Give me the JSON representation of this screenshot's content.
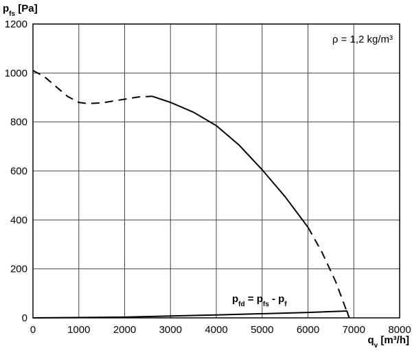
{
  "chart_data": {
    "type": "line",
    "ylabel": [
      {
        "text": "p"
      },
      {
        "text": "fs",
        "sub": true
      },
      {
        "text": " [Pa]"
      }
    ],
    "xlabel": [
      {
        "text": "q"
      },
      {
        "text": "v",
        "sub": true
      },
      {
        "text": " [m³/h]"
      }
    ],
    "annotation": "ρ = 1,2 kg/m³",
    "formula": [
      {
        "text": "p"
      },
      {
        "text": "fd",
        "sub": true
      },
      {
        "text": " = p"
      },
      {
        "text": "fs",
        "sub": true
      },
      {
        "text": " - p"
      },
      {
        "text": "f",
        "sub": true
      }
    ],
    "xlim": [
      0,
      8000
    ],
    "xticks": [
      0,
      1000,
      2000,
      3000,
      4000,
      5000,
      6000,
      7000,
      8000
    ],
    "ylim": [
      0,
      1200
    ],
    "yticks": [
      0,
      200,
      400,
      600,
      800,
      1000,
      1200
    ],
    "grid": true,
    "series": [
      {
        "color": "#000000",
        "dashed": true,
        "x": [
          0,
          250,
          500,
          750,
          1000,
          1200,
          1500,
          2000,
          2300,
          2600
        ],
        "values": [
          1010,
          985,
          945,
          905,
          880,
          875,
          878,
          893,
          902,
          905
        ]
      },
      {
        "color": "#000000",
        "dashed": false,
        "x": [
          2600,
          3000,
          3500,
          4000,
          4500,
          5000,
          5500,
          6000
        ],
        "values": [
          905,
          880,
          840,
          785,
          705,
          605,
          495,
          370
        ]
      },
      {
        "color": "#000000",
        "dashed": true,
        "x": [
          6000,
          6300,
          6600,
          6900
        ],
        "values": [
          370,
          270,
          150,
          0
        ]
      },
      {
        "color": "#000000",
        "dashed": false,
        "x": [
          0,
          2000,
          4000,
          6000,
          6850,
          6900
        ],
        "values": [
          0,
          3,
          12,
          22,
          28,
          0
        ]
      }
    ]
  }
}
